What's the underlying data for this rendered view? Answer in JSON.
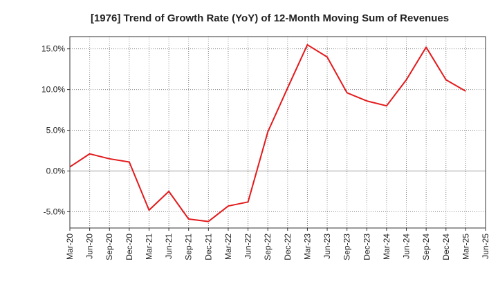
{
  "chart_data": {
    "type": "line",
    "title": "[1976]  Trend of Growth Rate (YoY) of 12-Month Moving Sum of Revenues",
    "xlabel": "",
    "ylabel": "",
    "categories": [
      "Mar-20",
      "Jun-20",
      "Sep-20",
      "Dec-20",
      "Mar-21",
      "Jun-21",
      "Sep-21",
      "Dec-21",
      "Mar-22",
      "Jun-22",
      "Sep-22",
      "Dec-22",
      "Mar-23",
      "Jun-23",
      "Sep-23",
      "Dec-23",
      "Mar-24",
      "Jun-24",
      "Sep-24",
      "Dec-24",
      "Mar-25",
      "Jun-25"
    ],
    "series": [
      {
        "values": [
          0.5,
          2.1,
          1.5,
          1.1,
          -4.8,
          -2.5,
          -5.9,
          -6.2,
          -4.3,
          -3.8,
          4.8,
          10.2,
          15.5,
          14.0,
          9.6,
          8.6,
          8.0,
          11.2,
          15.2,
          11.2,
          9.8,
          null
        ]
      }
    ],
    "y_ticks": [
      "15.0%",
      "10.0%",
      "5.0%",
      "0.0%",
      "-5.0%"
    ],
    "y_tick_values": [
      15,
      10,
      5,
      0,
      -5
    ],
    "ylim": [
      -7,
      16.5
    ],
    "grid": true,
    "colors": {
      "line": "#e31a1c",
      "zero_line": "#999999",
      "grid": "#888888",
      "frame": "#333333"
    }
  }
}
